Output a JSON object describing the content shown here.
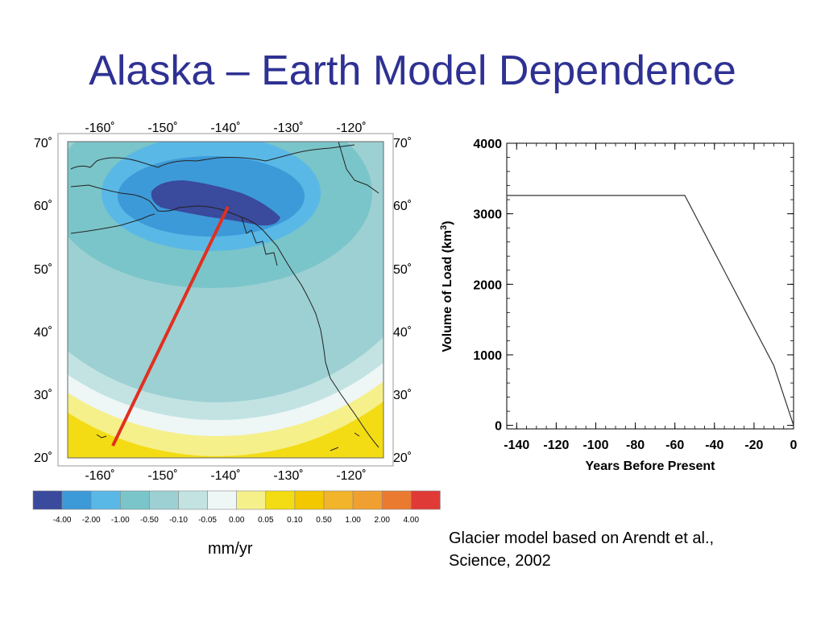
{
  "title": "Alaska – Earth Model Dependence",
  "map": {
    "top_lon_labels": [
      "-160˚",
      "-150˚",
      "-140˚",
      "-130˚",
      "-120˚"
    ],
    "bottom_lon_labels": [
      "-160˚",
      "-150˚",
      "-140˚",
      "-130˚",
      "-120˚"
    ],
    "left_lat_labels": [
      "70˚",
      "60˚",
      "50˚",
      "40˚",
      "30˚",
      "20˚"
    ],
    "right_lat_labels": [
      "70˚",
      "60˚",
      "50˚",
      "40˚",
      "30˚",
      "20˚"
    ],
    "profile_line_color": "#e03020",
    "coastline_color": "#222222"
  },
  "legend": {
    "colors": [
      "#3a4a9c",
      "#3d9ad9",
      "#5ab8e6",
      "#7ac5c9",
      "#9dd0d3",
      "#c3e3e3",
      "#eef6f6",
      "#f5f08a",
      "#f3dc14",
      "#f3c800",
      "#f1b42a",
      "#f0a030",
      "#ea7a30",
      "#e03a36"
    ],
    "labels": [
      "-4.00",
      "-2.00",
      "-1.00",
      "-0.50",
      "-0.10",
      "-0.05",
      "0.00",
      "0.05",
      "0.10",
      "0.50",
      "1.00",
      "2.00",
      "4.00"
    ],
    "unit": "mm/yr"
  },
  "chart_data": {
    "type": "line",
    "title": "",
    "xlabel": "Years Before Present",
    "ylabel": "Volume of Load (km",
    "ylabel_superscript": "3",
    "ylabel_suffix": ")",
    "xlim": [
      -145,
      0
    ],
    "ylim": [
      -50,
      4000
    ],
    "x_ticks": [
      -140,
      -120,
      -100,
      -80,
      -60,
      -40,
      -20,
      0
    ],
    "y_ticks": [
      0,
      1000,
      2000,
      3000,
      4000
    ],
    "x_tick_labels": [
      "-140",
      "-120",
      "-100",
      "-80",
      "-60",
      "-40",
      "-20",
      "0"
    ],
    "y_tick_labels": [
      "0",
      "1000",
      "2000",
      "3000",
      "4000"
    ],
    "series": [
      {
        "x": [
          -145,
          -55,
          -10,
          0
        ],
        "y": [
          3260,
          3260,
          850,
          0
        ]
      }
    ],
    "grid": false
  },
  "caption": {
    "line1": "Glacier model based on Arendt et al.,",
    "line2": "Science, 2002"
  }
}
